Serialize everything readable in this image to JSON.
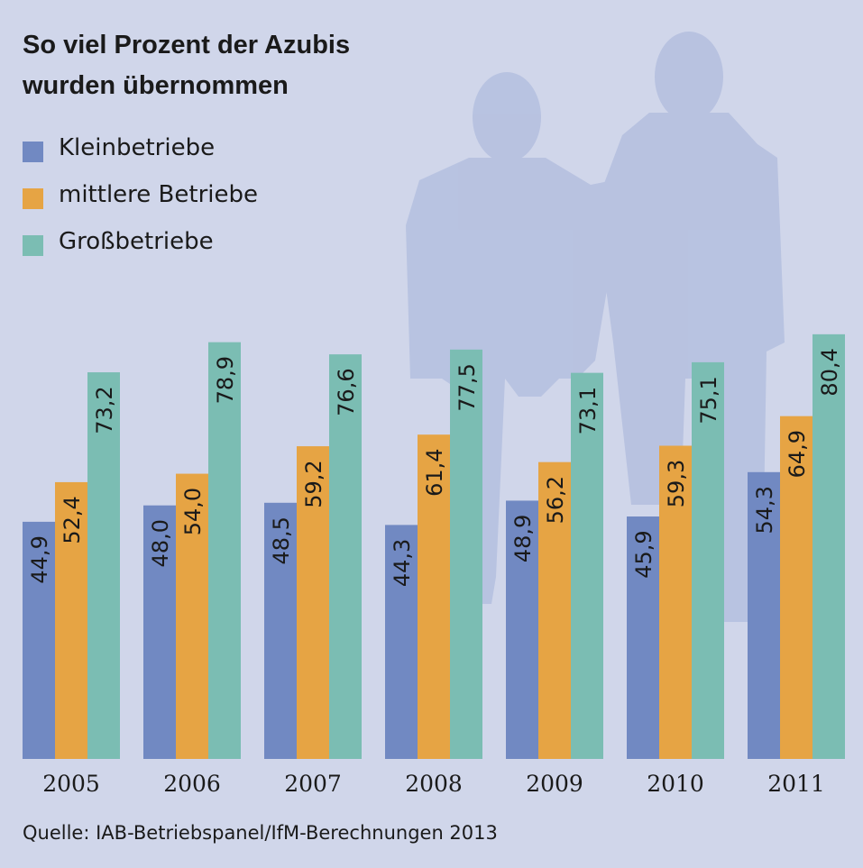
{
  "chart_data": {
    "type": "bar",
    "title": "So viel Prozent der Azubis wurden übernommen",
    "title_lines": [
      "So viel Prozent der Azubis",
      "wurden übernommen"
    ],
    "categories": [
      "2005",
      "2006",
      "2007",
      "2008",
      "2009",
      "2010",
      "2011"
    ],
    "series": [
      {
        "name": "Kleinbetriebe",
        "color": "#7189c2",
        "values": [
          44.9,
          48.0,
          48.5,
          44.3,
          48.9,
          45.9,
          54.3
        ],
        "labels": [
          "44,9",
          "48,0",
          "48,5",
          "44,3",
          "48,9",
          "45,9",
          "54,3"
        ]
      },
      {
        "name": "mittlere Betriebe",
        "color": "#e6a444",
        "values": [
          52.4,
          54.0,
          59.2,
          61.4,
          56.2,
          59.3,
          64.9
        ],
        "labels": [
          "52,4",
          "54,0",
          "59,2",
          "61,4",
          "56,2",
          "59,3",
          "64,9"
        ]
      },
      {
        "name": "Großbetriebe",
        "color": "#7bbdb3",
        "values": [
          73.2,
          78.9,
          76.6,
          77.5,
          73.1,
          75.1,
          80.4
        ],
        "labels": [
          "73,2",
          "78,9",
          "76,6",
          "77,5",
          "73,1",
          "75,1",
          "80,4"
        ]
      }
    ],
    "unit": "%",
    "ylim": [
      0,
      85
    ],
    "grid": false,
    "legend_position": "top-left",
    "source": "Quelle: IAB-Betriebspanel/IfM-Berechnungen 2013"
  },
  "background_color": "#d0d6ea"
}
